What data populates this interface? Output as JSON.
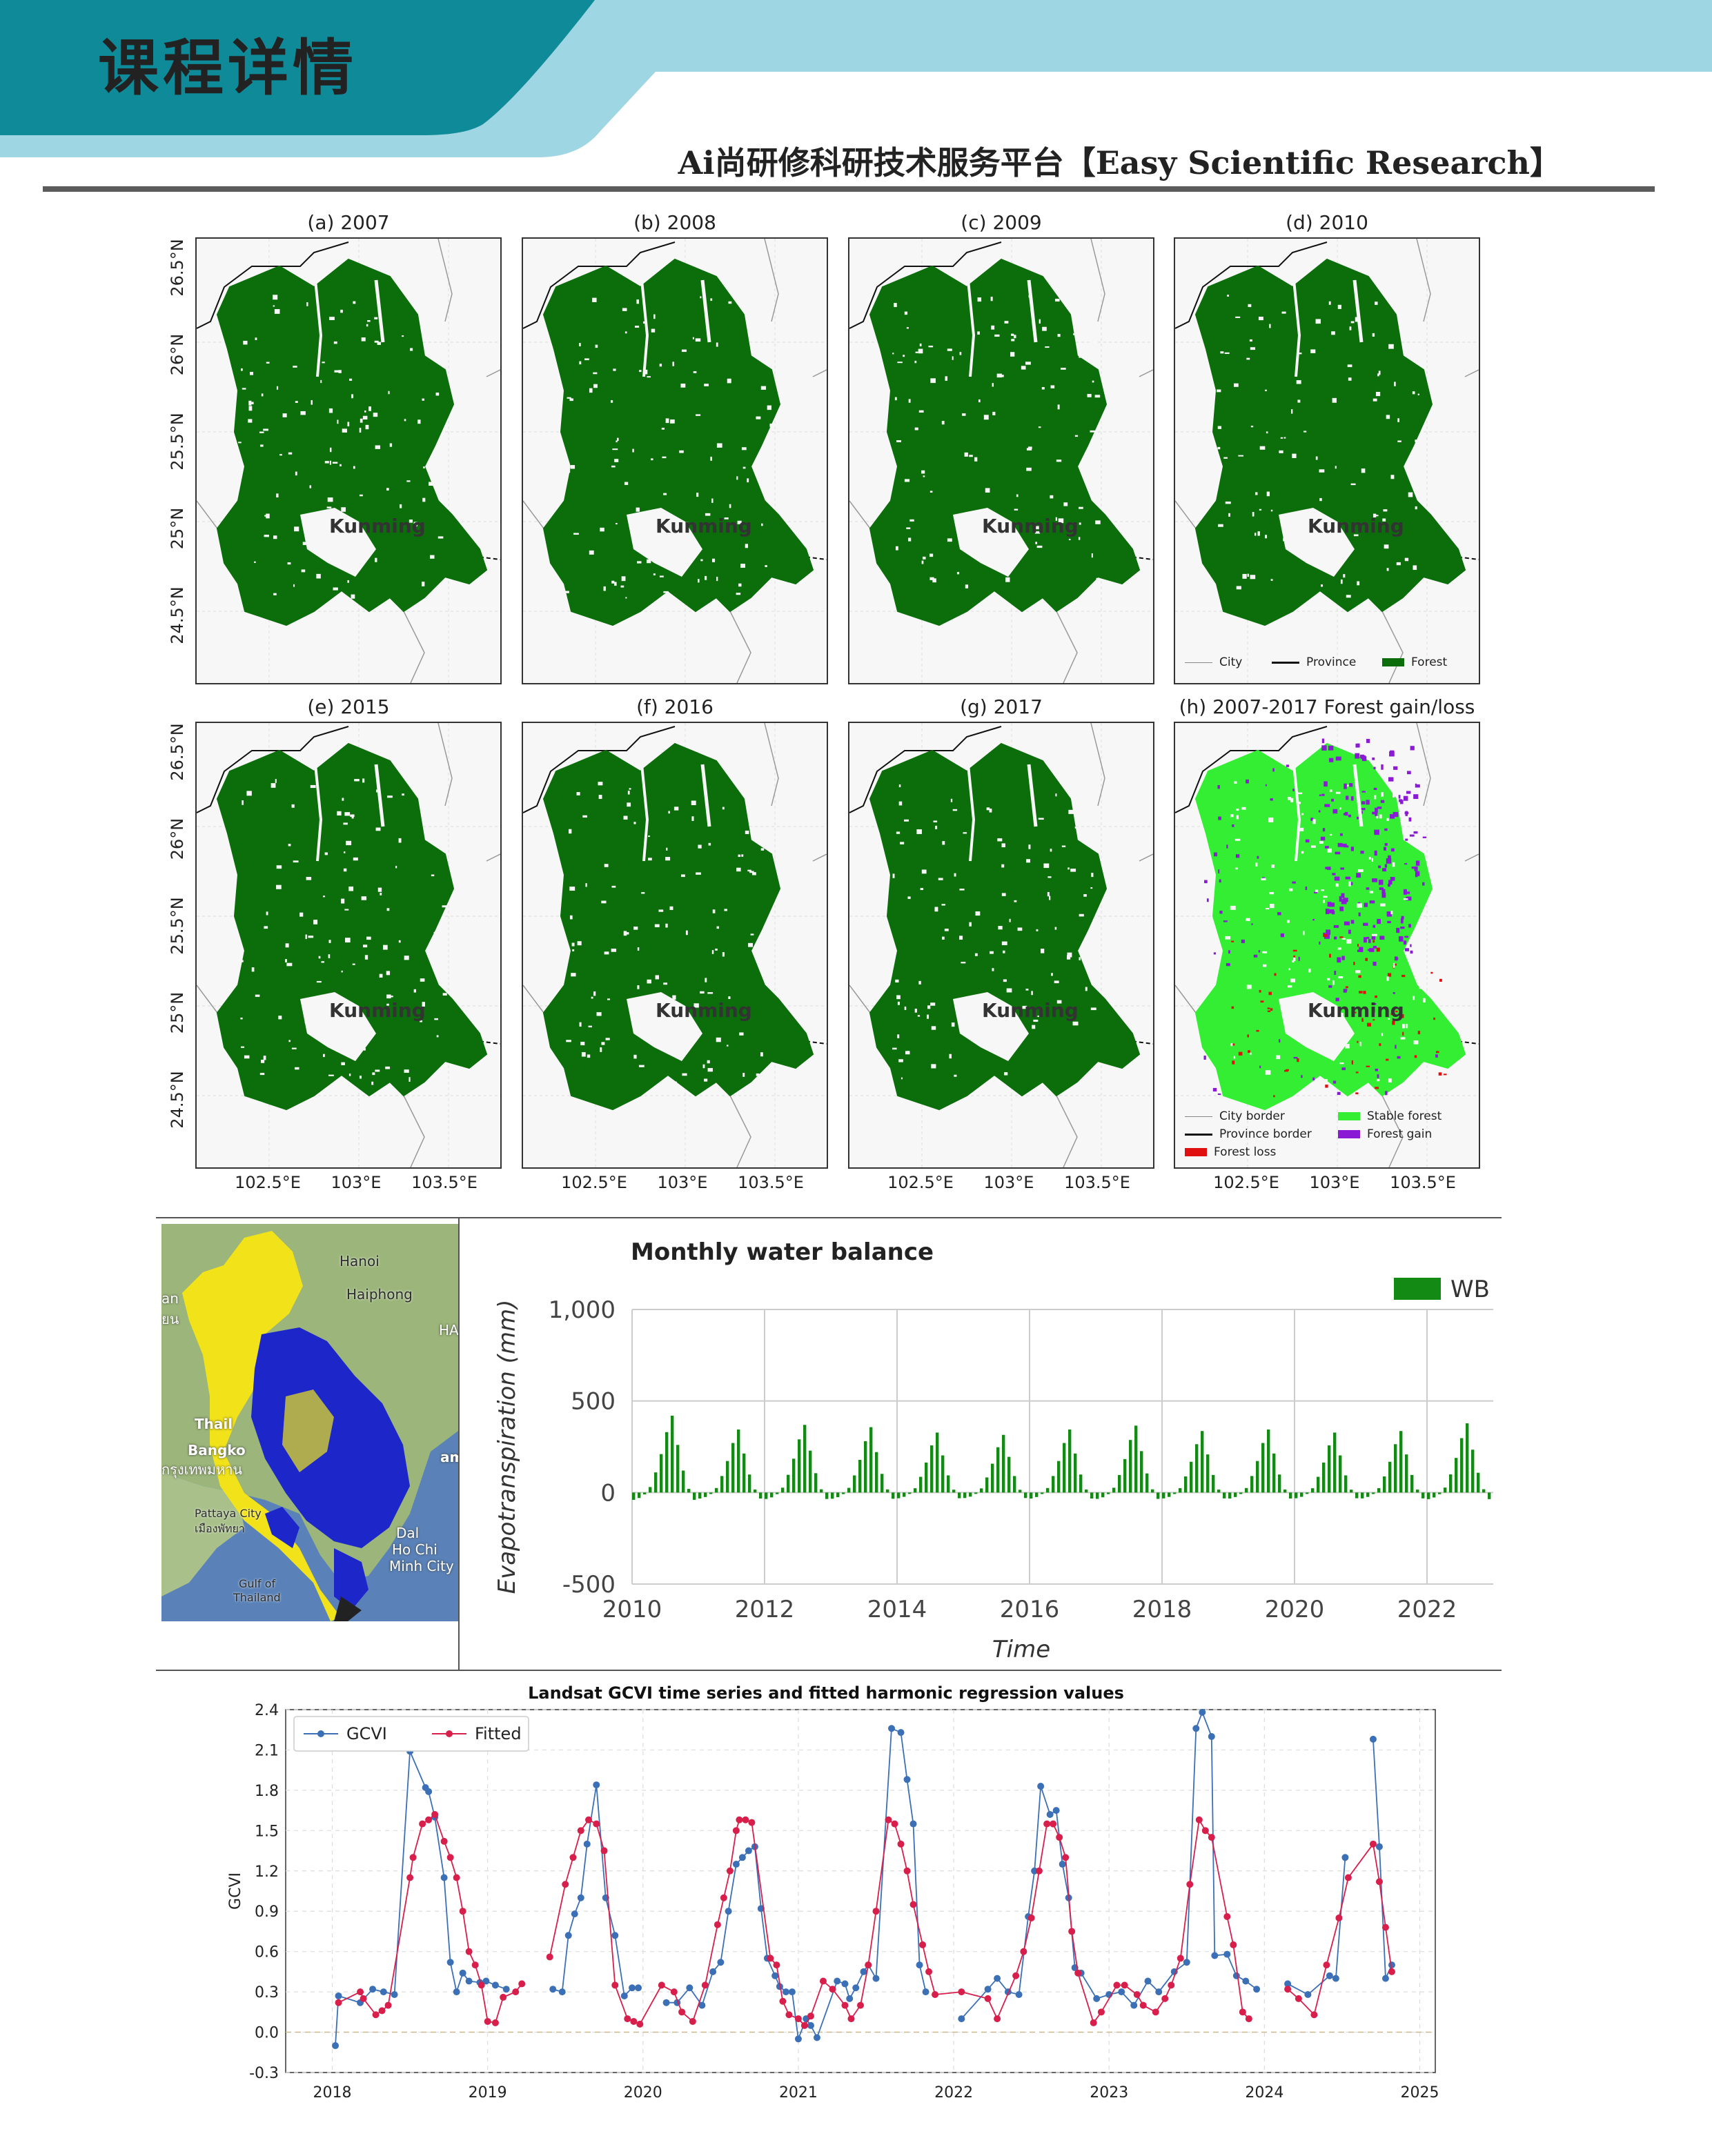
{
  "header": {
    "title": "课程详情",
    "subtitle": "Ai尚研修科研技术服务平台【Easy Scientific Research】",
    "band_color": "#9fd6e4",
    "accent_color": "#0f8a98"
  },
  "figure_maps": {
    "panels": [
      {
        "title": "(a) 2007",
        "city": "Kunming",
        "type": "forest"
      },
      {
        "title": "(b) 2008",
        "city": "Kunming",
        "type": "forest"
      },
      {
        "title": "(c) 2009",
        "city": "Kunming",
        "type": "forest"
      },
      {
        "title": "(d) 2010",
        "city": "Kunming",
        "type": "forest"
      },
      {
        "title": "(e) 2015",
        "city": "Kunming",
        "type": "forest"
      },
      {
        "title": "(f) 2016",
        "city": "Kunming",
        "type": "forest"
      },
      {
        "title": "(g) 2017",
        "city": "Kunming",
        "type": "forest"
      },
      {
        "title": "(h) 2007-2017 Forest gain/loss",
        "city": "Kunming",
        "type": "change"
      }
    ],
    "lat_ticks": [
      "26.5°N",
      "26°N",
      "25.5°N",
      "25°N",
      "24.5°N"
    ],
    "lon_ticks": [
      "102.5°E",
      "103°E",
      "103.5°E"
    ],
    "legend_d": [
      {
        "label": "City",
        "kind": "line-thin",
        "color": "#888888"
      },
      {
        "label": "Province",
        "kind": "line-thick",
        "color": "#111111"
      },
      {
        "label": "Forest",
        "kind": "box",
        "color": "#0b6e0b"
      }
    ],
    "legend_h": [
      {
        "label": "City border",
        "kind": "line-thin",
        "color": "#888888"
      },
      {
        "label": "Province border",
        "kind": "line-thick",
        "color": "#111111"
      },
      {
        "label": "Forest loss",
        "kind": "box",
        "color": "#e01010"
      },
      {
        "label": "Stable forest",
        "kind": "box",
        "color": "#33ee33"
      },
      {
        "label": "Forest gain",
        "kind": "box",
        "color": "#8a1ad4"
      }
    ],
    "forest_color": "#0b6e0b",
    "stable_color": "#33ee33",
    "gain_color": "#8a1ad4",
    "loss_color": "#e01010"
  },
  "inset_map": {
    "labels": [
      "Hanoi",
      "Haiphong",
      "HA",
      "Thail",
      "Bangko",
      "กรุงเทพมหาน",
      "am",
      "Pattaya City",
      "เมืองพัทยา",
      "Dal",
      "Ho Chi",
      "Minh City",
      "Gulf of",
      "Thailand",
      "an",
      "ยน"
    ]
  },
  "chart_data": [
    {
      "type": "bar",
      "title": "Monthly water balance",
      "xlabel": "Time",
      "ylabel": "Evapotranspiration (mm)",
      "legend": [
        "WB"
      ],
      "legend_position": "top-right",
      "series_color": "#138a13",
      "x_ticks": [
        "2010",
        "2012",
        "2014",
        "2016",
        "2018",
        "2020",
        "2022"
      ],
      "y_ticks": [
        "1,000",
        "500",
        "0",
        "-500"
      ],
      "xlim": [
        2010,
        2023
      ],
      "ylim": [
        -500,
        1000
      ],
      "grid": true,
      "monthly_pattern": [
        -40,
        -30,
        -10,
        30,
        110,
        210,
        330,
        420,
        260,
        120,
        20,
        -40
      ],
      "year_scales": [
        1.0,
        0.82,
        0.88,
        0.85,
        0.78,
        0.75,
        0.82,
        0.87,
        0.8,
        0.82,
        0.78,
        0.8,
        0.9
      ],
      "start_year": 2010
    },
    {
      "type": "scatter",
      "title": "Landsat GCVI time series and fitted harmonic regression values",
      "ylabel": "GCVI",
      "legend": [
        "GCVI",
        "Fitted"
      ],
      "legend_position": "top-left",
      "colors": {
        "GCVI": "#3b6fb6",
        "Fitted": "#d81e4a"
      },
      "x_ticks": [
        "2018",
        "2019",
        "2020",
        "2021",
        "2022",
        "2023",
        "2024",
        "2025"
      ],
      "y_ticks": [
        "2.4",
        "2.1",
        "1.8",
        "1.5",
        "1.2",
        "0.9",
        "0.6",
        "0.3",
        "0.0",
        "-0.3"
      ],
      "xlim": [
        2017.7,
        2025.1
      ],
      "ylim": [
        -0.3,
        2.4
      ],
      "grid": true,
      "gcvi": [
        [
          2018.02,
          -0.1
        ],
        [
          2018.04,
          0.27
        ],
        [
          2018.18,
          0.22
        ],
        [
          2018.26,
          0.32
        ],
        [
          2018.33,
          0.3
        ],
        [
          2018.4,
          0.28
        ],
        [
          2018.5,
          2.09
        ],
        [
          2018.6,
          1.82
        ],
        [
          2018.62,
          1.79
        ],
        [
          2018.66,
          1.6
        ],
        [
          2018.72,
          1.15
        ],
        [
          2018.76,
          0.52
        ],
        [
          2018.8,
          0.3
        ],
        [
          2018.84,
          0.44
        ],
        [
          2018.88,
          0.38
        ],
        [
          2018.95,
          0.37
        ],
        [
          2018.99,
          0.38
        ],
        [
          2019.05,
          0.35
        ],
        [
          2019.12,
          0.32
        ],
        [
          2019.42,
          0.32
        ],
        [
          2019.48,
          0.3
        ],
        [
          2019.52,
          0.72
        ],
        [
          2019.56,
          0.88
        ],
        [
          2019.6,
          1.0
        ],
        [
          2019.64,
          1.4
        ],
        [
          2019.7,
          1.84
        ],
        [
          2019.76,
          1.0
        ],
        [
          2019.82,
          0.72
        ],
        [
          2019.88,
          0.27
        ],
        [
          2019.93,
          0.33
        ],
        [
          2019.97,
          0.33
        ],
        [
          2020.15,
          0.22
        ],
        [
          2020.22,
          0.22
        ],
        [
          2020.3,
          0.33
        ],
        [
          2020.38,
          0.2
        ],
        [
          2020.45,
          0.45
        ],
        [
          2020.5,
          0.52
        ],
        [
          2020.55,
          0.9
        ],
        [
          2020.6,
          1.25
        ],
        [
          2020.64,
          1.3
        ],
        [
          2020.68,
          1.35
        ],
        [
          2020.72,
          1.38
        ],
        [
          2020.76,
          0.92
        ],
        [
          2020.8,
          0.55
        ],
        [
          2020.85,
          0.42
        ],
        [
          2020.88,
          0.34
        ],
        [
          2020.92,
          0.3
        ],
        [
          2020.96,
          0.3
        ],
        [
          2021.0,
          -0.05
        ],
        [
          2021.05,
          0.1
        ],
        [
          2021.08,
          0.05
        ],
        [
          2021.12,
          -0.04
        ],
        [
          2021.25,
          0.38
        ],
        [
          2021.3,
          0.36
        ],
        [
          2021.33,
          0.25
        ],
        [
          2021.37,
          0.33
        ],
        [
          2021.42,
          0.45
        ],
        [
          2021.45,
          0.5
        ],
        [
          2021.5,
          0.4
        ],
        [
          2021.6,
          2.26
        ],
        [
          2021.66,
          2.23
        ],
        [
          2021.7,
          1.88
        ],
        [
          2021.74,
          1.55
        ],
        [
          2021.78,
          0.5
        ],
        [
          2021.82,
          0.3
        ],
        [
          2022.05,
          0.1
        ],
        [
          2022.22,
          0.32
        ],
        [
          2022.28,
          0.4
        ],
        [
          2022.35,
          0.3
        ],
        [
          2022.42,
          0.28
        ],
        [
          2022.48,
          0.86
        ],
        [
          2022.52,
          1.2
        ],
        [
          2022.56,
          1.83
        ],
        [
          2022.62,
          1.62
        ],
        [
          2022.66,
          1.65
        ],
        [
          2022.7,
          1.25
        ],
        [
          2022.74,
          1.0
        ],
        [
          2022.78,
          0.48
        ],
        [
          2022.82,
          0.44
        ],
        [
          2022.92,
          0.25
        ],
        [
          2023.0,
          0.28
        ],
        [
          2023.08,
          0.3
        ],
        [
          2023.16,
          0.2
        ],
        [
          2023.25,
          0.38
        ],
        [
          2023.32,
          0.3
        ],
        [
          2023.42,
          0.45
        ],
        [
          2023.5,
          0.52
        ],
        [
          2023.56,
          2.26
        ],
        [
          2023.6,
          2.38
        ],
        [
          2023.66,
          2.2
        ],
        [
          2023.68,
          0.57
        ],
        [
          2023.76,
          0.58
        ],
        [
          2023.82,
          0.42
        ],
        [
          2023.88,
          0.38
        ],
        [
          2023.95,
          0.32
        ],
        [
          2024.15,
          0.36
        ],
        [
          2024.28,
          0.28
        ],
        [
          2024.42,
          0.42
        ],
        [
          2024.46,
          0.4
        ],
        [
          2024.52,
          1.3
        ],
        [
          2024.7,
          2.18
        ],
        [
          2024.74,
          1.38
        ],
        [
          2024.78,
          0.4
        ],
        [
          2024.82,
          0.5
        ]
      ],
      "fitted": [
        [
          2018.04,
          0.22
        ],
        [
          2018.18,
          0.3
        ],
        [
          2018.2,
          0.25
        ],
        [
          2018.28,
          0.13
        ],
        [
          2018.32,
          0.16
        ],
        [
          2018.36,
          0.2
        ],
        [
          2018.5,
          1.15
        ],
        [
          2018.52,
          1.3
        ],
        [
          2018.58,
          1.55
        ],
        [
          2018.62,
          1.58
        ],
        [
          2018.66,
          1.62
        ],
        [
          2018.72,
          1.42
        ],
        [
          2018.76,
          1.3
        ],
        [
          2018.8,
          1.15
        ],
        [
          2018.84,
          0.9
        ],
        [
          2018.88,
          0.6
        ],
        [
          2018.92,
          0.5
        ],
        [
          2018.96,
          0.35
        ],
        [
          2019.0,
          0.08
        ],
        [
          2019.05,
          0.07
        ],
        [
          2019.1,
          0.26
        ],
        [
          2019.18,
          0.3
        ],
        [
          2019.22,
          0.36
        ],
        [
          2019.4,
          0.56
        ],
        [
          2019.5,
          1.1
        ],
        [
          2019.55,
          1.3
        ],
        [
          2019.6,
          1.5
        ],
        [
          2019.65,
          1.58
        ],
        [
          2019.7,
          1.55
        ],
        [
          2019.75,
          1.35
        ],
        [
          2019.82,
          0.35
        ],
        [
          2019.9,
          0.1
        ],
        [
          2019.94,
          0.08
        ],
        [
          2019.98,
          0.06
        ],
        [
          2020.12,
          0.35
        ],
        [
          2020.2,
          0.3
        ],
        [
          2020.25,
          0.15
        ],
        [
          2020.32,
          0.08
        ],
        [
          2020.4,
          0.35
        ],
        [
          2020.48,
          0.8
        ],
        [
          2020.52,
          1.0
        ],
        [
          2020.56,
          1.2
        ],
        [
          2020.6,
          1.5
        ],
        [
          2020.62,
          1.58
        ],
        [
          2020.66,
          1.58
        ],
        [
          2020.7,
          1.56
        ],
        [
          2020.82,
          0.55
        ],
        [
          2020.86,
          0.5
        ],
        [
          2020.9,
          0.23
        ],
        [
          2020.94,
          0.13
        ],
        [
          2021.0,
          0.1
        ],
        [
          2021.04,
          0.05
        ],
        [
          2021.08,
          0.12
        ],
        [
          2021.16,
          0.38
        ],
        [
          2021.22,
          0.32
        ],
        [
          2021.3,
          0.2
        ],
        [
          2021.34,
          0.1
        ],
        [
          2021.4,
          0.2
        ],
        [
          2021.45,
          0.5
        ],
        [
          2021.5,
          0.9
        ],
        [
          2021.58,
          1.58
        ],
        [
          2021.62,
          1.55
        ],
        [
          2021.66,
          1.4
        ],
        [
          2021.7,
          1.2
        ],
        [
          2021.74,
          0.95
        ],
        [
          2021.8,
          0.65
        ],
        [
          2021.84,
          0.45
        ],
        [
          2021.88,
          0.28
        ],
        [
          2022.05,
          0.3
        ],
        [
          2022.22,
          0.25
        ],
        [
          2022.28,
          0.1
        ],
        [
          2022.4,
          0.42
        ],
        [
          2022.45,
          0.6
        ],
        [
          2022.5,
          0.85
        ],
        [
          2022.55,
          1.2
        ],
        [
          2022.6,
          1.55
        ],
        [
          2022.64,
          1.55
        ],
        [
          2022.68,
          1.45
        ],
        [
          2022.72,
          1.3
        ],
        [
          2022.76,
          0.75
        ],
        [
          2022.8,
          0.44
        ],
        [
          2022.9,
          0.07
        ],
        [
          2022.95,
          0.15
        ],
        [
          2023.05,
          0.35
        ],
        [
          2023.1,
          0.35
        ],
        [
          2023.18,
          0.28
        ],
        [
          2023.22,
          0.2
        ],
        [
          2023.3,
          0.15
        ],
        [
          2023.36,
          0.25
        ],
        [
          2023.4,
          0.35
        ],
        [
          2023.46,
          0.55
        ],
        [
          2023.52,
          1.1
        ],
        [
          2023.58,
          1.58
        ],
        [
          2023.62,
          1.5
        ],
        [
          2023.66,
          1.45
        ],
        [
          2023.76,
          0.86
        ],
        [
          2023.8,
          0.65
        ],
        [
          2023.86,
          0.15
        ],
        [
          2023.9,
          0.1
        ],
        [
          2024.15,
          0.32
        ],
        [
          2024.22,
          0.25
        ],
        [
          2024.32,
          0.13
        ],
        [
          2024.4,
          0.5
        ],
        [
          2024.48,
          0.85
        ],
        [
          2024.54,
          1.15
        ],
        [
          2024.7,
          1.4
        ],
        [
          2024.74,
          1.12
        ],
        [
          2024.78,
          0.78
        ],
        [
          2024.82,
          0.45
        ]
      ]
    }
  ]
}
